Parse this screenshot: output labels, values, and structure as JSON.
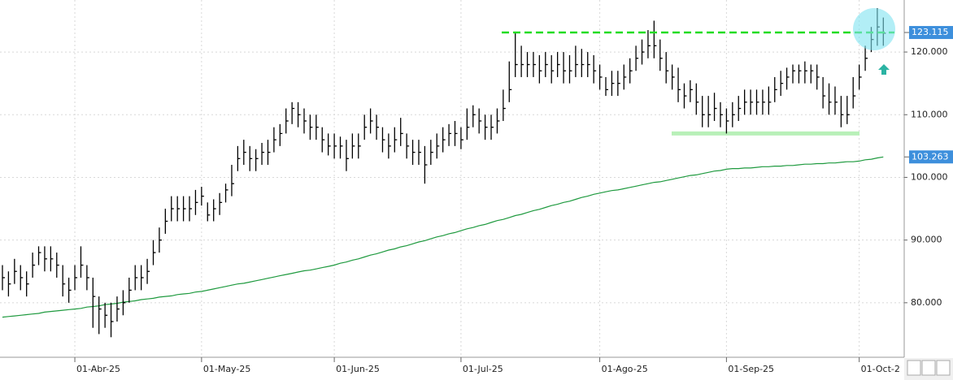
{
  "chart_data": {
    "type": "hlc",
    "categories": [
      null,
      null,
      null,
      null,
      null,
      null,
      null,
      null,
      null,
      null,
      null,
      null,
      "01-Abr-25",
      null,
      null,
      null,
      null,
      null,
      null,
      null,
      null,
      null,
      null,
      null,
      null,
      null,
      null,
      null,
      null,
      null,
      null,
      null,
      null,
      "01-May-25",
      null,
      null,
      null,
      null,
      null,
      null,
      null,
      null,
      null,
      null,
      null,
      null,
      null,
      null,
      null,
      null,
      null,
      null,
      null,
      null,
      null,
      "01-Jun-25",
      null,
      null,
      null,
      null,
      null,
      null,
      null,
      null,
      null,
      null,
      null,
      null,
      null,
      null,
      null,
      null,
      null,
      null,
      null,
      null,
      "01-Jul-25",
      null,
      null,
      null,
      null,
      null,
      null,
      null,
      null,
      null,
      null,
      null,
      null,
      null,
      null,
      null,
      null,
      null,
      null,
      null,
      null,
      null,
      null,
      "01-Ago-25",
      null,
      null,
      null,
      null,
      null,
      null,
      null,
      null,
      null,
      null,
      null,
      null,
      null,
      null,
      null,
      null,
      null,
      null,
      null,
      null,
      "01-Sep-25",
      null,
      null,
      null,
      null,
      null,
      null,
      null,
      null,
      null,
      null,
      null,
      null,
      null,
      null,
      null,
      null,
      null,
      null,
      null,
      null,
      null,
      "01-Oct-2",
      null,
      null,
      null,
      null
    ],
    "ohlc": {
      "color": "#000000",
      "high": [
        86,
        85,
        87,
        86,
        85,
        88,
        89,
        89,
        89,
        88,
        86,
        84,
        86,
        89,
        86,
        84,
        81,
        80,
        80,
        81,
        82,
        84,
        86,
        86,
        87,
        90,
        92,
        95,
        97,
        97,
        97,
        97,
        98,
        98.5,
        96,
        96.5,
        97.5,
        99,
        102,
        105,
        106,
        105,
        104.5,
        105.5,
        106,
        108,
        108.5,
        111,
        112,
        112,
        111,
        110,
        110,
        108,
        107,
        107,
        106.5,
        106,
        107,
        107,
        110,
        111,
        110,
        108,
        107,
        108,
        109.5,
        107,
        106,
        106,
        105,
        106,
        107,
        108,
        108.5,
        109,
        108,
        111,
        111.5,
        111,
        110,
        110,
        111,
        114,
        118.5,
        123,
        121,
        120,
        120,
        119.5,
        120,
        119.5,
        120,
        120,
        119.5,
        121,
        120.5,
        120,
        119.5,
        118,
        116,
        117,
        117,
        118,
        119,
        121,
        122,
        123.5,
        125,
        122,
        120,
        118,
        117.5,
        115,
        115.5,
        115,
        113,
        113,
        113.5,
        112,
        111,
        112,
        113,
        114,
        114,
        114,
        114,
        114.5,
        116,
        117,
        117.5,
        118,
        118,
        118.5,
        118,
        118,
        116,
        115,
        114.5,
        113,
        113,
        116,
        118,
        121,
        124,
        127,
        125.5
      ],
      "low": [
        82,
        81,
        83,
        82,
        81,
        84,
        86,
        85,
        85,
        84,
        81,
        80,
        82,
        84,
        82,
        76,
        75,
        76,
        74.5,
        77,
        78,
        80,
        82,
        82,
        83,
        86,
        88,
        91,
        93,
        93,
        93,
        93,
        94,
        95.5,
        93,
        93,
        94,
        96,
        97,
        101,
        102,
        101,
        101,
        102,
        102,
        104,
        105,
        107,
        108.5,
        108,
        107,
        106,
        106,
        104,
        103.5,
        103,
        103,
        101,
        103,
        103,
        106,
        107,
        106,
        104,
        103,
        104,
        105,
        103,
        102,
        102,
        99,
        102,
        103,
        104,
        105,
        105,
        104.5,
        106,
        108,
        107,
        106,
        106,
        107,
        109,
        112,
        116,
        116,
        116,
        116,
        115,
        116,
        115,
        116,
        115,
        115,
        116,
        116,
        116,
        115,
        114,
        113,
        113,
        113,
        114,
        115,
        117,
        118,
        119,
        119,
        117,
        115,
        114,
        112,
        111,
        112,
        110,
        108,
        108,
        109,
        108,
        107,
        108,
        109,
        110,
        110,
        110,
        110,
        110,
        112,
        113,
        114,
        115,
        115,
        115,
        115,
        114,
        111,
        110,
        110,
        108,
        108.5,
        111,
        114,
        117,
        120,
        121,
        121
      ],
      "close": [
        84,
        83,
        85,
        84,
        83,
        86,
        88,
        87,
        87,
        86,
        83,
        82,
        84,
        86,
        84,
        81,
        79,
        78,
        77,
        79,
        80,
        82,
        84,
        84,
        85,
        88,
        90,
        93,
        95,
        95,
        95,
        95,
        96,
        97,
        94,
        95,
        96,
        98,
        99,
        103,
        104,
        103,
        103,
        104,
        104,
        106,
        107,
        109,
        111,
        110,
        109,
        108,
        108,
        106,
        105,
        105,
        105,
        103,
        105,
        105,
        108,
        109,
        108,
        106,
        105,
        106,
        107,
        105,
        104,
        104,
        102,
        104,
        105,
        106,
        107,
        107,
        106,
        108,
        110,
        109,
        108,
        108,
        109,
        111,
        114,
        118,
        118,
        118,
        118,
        117,
        118,
        117,
        118,
        117,
        117,
        118,
        118,
        118,
        117,
        116,
        114,
        115,
        115,
        116,
        117,
        119,
        120,
        121,
        121,
        119,
        117,
        116,
        114,
        113,
        114,
        112,
        110,
        110,
        111,
        110,
        109,
        110,
        111,
        112,
        112,
        112,
        112,
        112,
        114,
        115,
        116,
        117,
        117,
        117,
        117,
        116,
        113,
        112,
        112,
        110,
        110,
        113,
        116,
        119,
        122,
        124,
        123
      ]
    },
    "ma": {
      "color": "#1f9a3f",
      "values": [
        77.7,
        77.8,
        77.9,
        78.0,
        78.1,
        78.2,
        78.3,
        78.5,
        78.6,
        78.7,
        78.8,
        78.9,
        79.0,
        79.1,
        79.3,
        79.4,
        79.5,
        79.7,
        79.8,
        79.9,
        80.1,
        80.2,
        80.3,
        80.5,
        80.6,
        80.7,
        80.9,
        81.0,
        81.1,
        81.3,
        81.4,
        81.5,
        81.7,
        81.8,
        82.0,
        82.2,
        82.4,
        82.6,
        82.8,
        83.0,
        83.1,
        83.3,
        83.5,
        83.7,
        83.9,
        84.1,
        84.3,
        84.5,
        84.7,
        84.9,
        85.1,
        85.2,
        85.4,
        85.6,
        85.8,
        86.0,
        86.3,
        86.5,
        86.8,
        87.0,
        87.3,
        87.6,
        87.8,
        88.1,
        88.4,
        88.6,
        88.9,
        89.1,
        89.4,
        89.7,
        89.9,
        90.2,
        90.5,
        90.7,
        91.0,
        91.2,
        91.5,
        91.8,
        92.0,
        92.3,
        92.5,
        92.8,
        93.1,
        93.3,
        93.6,
        93.9,
        94.1,
        94.4,
        94.7,
        94.9,
        95.2,
        95.5,
        95.7,
        96.0,
        96.2,
        96.5,
        96.8,
        97.0,
        97.3,
        97.5,
        97.7,
        97.9,
        98.0,
        98.2,
        98.4,
        98.6,
        98.8,
        99.0,
        99.2,
        99.3,
        99.5,
        99.7,
        99.9,
        100.1,
        100.3,
        100.4,
        100.6,
        100.8,
        101.0,
        101.1,
        101.3,
        101.4,
        101.4,
        101.5,
        101.5,
        101.6,
        101.7,
        101.7,
        101.8,
        101.8,
        101.9,
        101.9,
        102.0,
        102.1,
        102.1,
        102.2,
        102.2,
        102.3,
        102.3,
        102.4,
        102.5,
        102.5,
        102.6,
        102.8,
        102.9,
        103.1,
        103.26
      ]
    },
    "resistance": {
      "value": 123.115,
      "color": "#22dd22"
    },
    "support": {
      "value": 107,
      "color": "#b8f0b8"
    },
    "price_labels": [
      {
        "value": 123.115,
        "label": "123.115"
      },
      {
        "value": 103.263,
        "label": "103.263"
      }
    ],
    "ylim": [
      71.3,
      128.3
    ],
    "yticks": [
      {
        "value": 80,
        "label": "80.000"
      },
      {
        "value": 90,
        "label": "90.000"
      },
      {
        "value": 100,
        "label": "100.000"
      },
      {
        "value": 110,
        "label": "110.000"
      },
      {
        "value": 120,
        "label": "120.000"
      }
    ],
    "grid": true
  }
}
